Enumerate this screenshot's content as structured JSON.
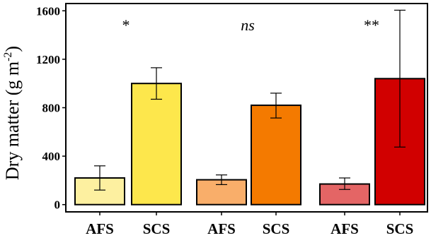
{
  "chart_data": {
    "type": "bar",
    "title": "",
    "xlabel": "",
    "ylabel_main": "Dry matter (g m",
    "ylabel_sup": "-2",
    "ylabel_close": ")",
    "ylim": [
      -60,
      1660
    ],
    "yticks": [
      0,
      400,
      800,
      1200,
      1600
    ],
    "grid": false,
    "bars": [
      {
        "category": "AFS",
        "value": 220,
        "err_low": 120,
        "err_high": 320,
        "color": "#FDF0A0"
      },
      {
        "category": "SCS",
        "value": 1000,
        "err_low": 870,
        "err_high": 1130,
        "color": "#FDE74C"
      },
      {
        "category": "AFS",
        "value": 205,
        "err_low": 165,
        "err_high": 245,
        "color": "#F9AE6A"
      },
      {
        "category": "SCS",
        "value": 820,
        "err_low": 715,
        "err_high": 920,
        "color": "#F47A00"
      },
      {
        "category": "AFS",
        "value": 170,
        "err_low": 125,
        "err_high": 220,
        "color": "#E46565"
      },
      {
        "category": "SCS",
        "value": 1040,
        "err_low": 475,
        "err_high": 1605,
        "color": "#D10000"
      }
    ],
    "significance": [
      {
        "label": "*",
        "italic": false
      },
      {
        "label": "ns",
        "italic": true
      },
      {
        "label": "**",
        "italic": false
      }
    ]
  }
}
